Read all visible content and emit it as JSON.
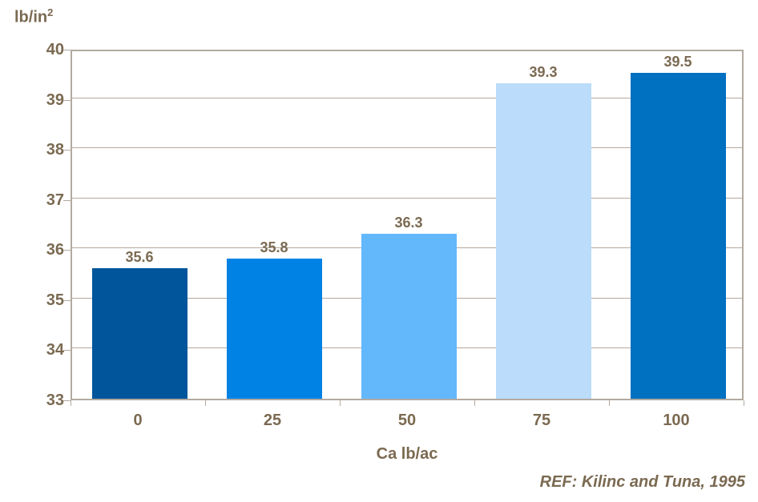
{
  "chart_data": {
    "type": "bar",
    "title": "",
    "categories": [
      "0",
      "25",
      "50",
      "75",
      "100"
    ],
    "values": [
      35.6,
      35.8,
      36.3,
      39.3,
      39.5
    ],
    "value_labels": [
      "35.6",
      "35.8",
      "36.3",
      "39.3",
      "39.5"
    ],
    "bar_colors": [
      "#00559B",
      "#0082E5",
      "#63B8FB",
      "#BBDCFB",
      "#0070C0"
    ],
    "xlabel": "Ca lb/ac",
    "ylabel_base": "lb/in",
    "ylabel_sup": "2",
    "ylim": [
      33,
      40
    ],
    "yticks": [
      "40",
      "39",
      "38",
      "37",
      "36",
      "35",
      "34",
      "33"
    ],
    "grid": "horizontal",
    "legend_position": "none"
  },
  "footer": {
    "reference": "REF: Kilinc and Tuna, 1995"
  },
  "colors": {
    "background": "#FFFFFF",
    "text": "#7B6A52",
    "axis": "#B3AAA0"
  }
}
